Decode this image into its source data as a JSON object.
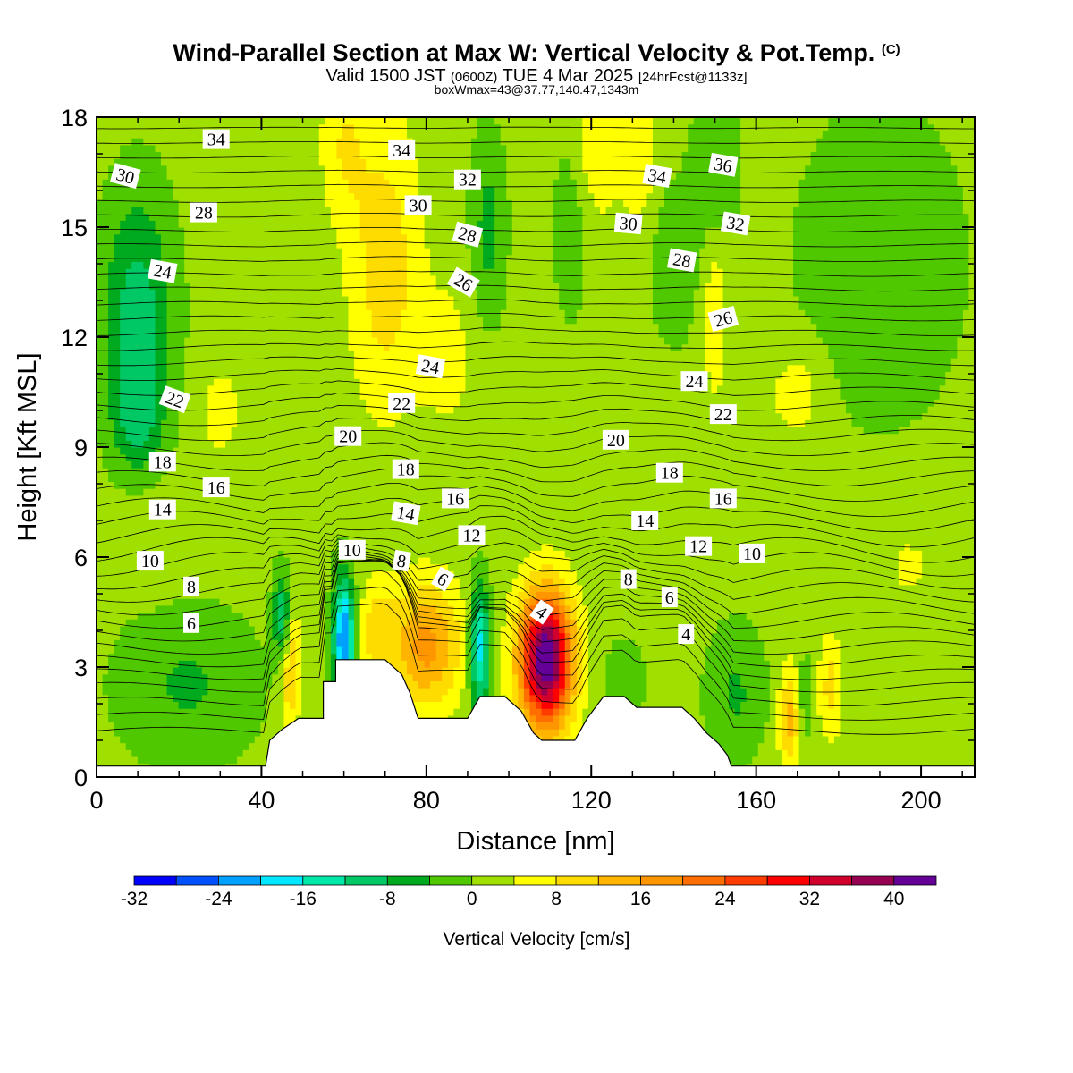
{
  "header": {
    "title": "Wind-Parallel Section at Max W: Vertical Velocity & Pot.Temp.",
    "copyright": "(C)",
    "valid_prefix": "Valid 1500 JST",
    "valid_utc": "(0600Z)",
    "valid_date": "TUE 4 Mar 2025",
    "forecast": "[24hrFcst@1133z]",
    "box_info": "boxWmax=43@37.77,140.47,1343m"
  },
  "chart_data": {
    "type": "heatmap",
    "xlabel": "Distance [nm]",
    "ylabel": "Height [Kft MSL]",
    "xlim": [
      0,
      213
    ],
    "ylim": [
      0,
      18
    ],
    "x_ticks": [
      "0",
      "40",
      "80",
      "120",
      "160",
      "200"
    ],
    "y_ticks": [
      "0",
      "3",
      "6",
      "9",
      "12",
      "15",
      "18"
    ],
    "colorbar": {
      "label": "Vertical Velocity [cm/s]",
      "tick_labels": [
        "-32",
        "-24",
        "-16",
        "-8",
        "0",
        "8",
        "16",
        "24",
        "32",
        "40"
      ],
      "levels": [
        -32,
        -28,
        -24,
        -20,
        -16,
        -12,
        -8,
        -4,
        0,
        4,
        8,
        12,
        16,
        20,
        24,
        28,
        32,
        36,
        40,
        44
      ],
      "colors": [
        "#0000ff",
        "#0050ff",
        "#00a0ff",
        "#00e8ff",
        "#00e8a8",
        "#00c864",
        "#00aa1e",
        "#50c800",
        "#a0e000",
        "#ffff00",
        "#ffdc00",
        "#ffb400",
        "#ff9600",
        "#ff6e00",
        "#ff3c00",
        "#ff0000",
        "#d2002d",
        "#960050",
        "#640096"
      ]
    },
    "terrain_kft": [
      [
        0,
        0.3
      ],
      [
        41,
        0.3
      ],
      [
        42,
        1.0
      ],
      [
        45,
        1.3
      ],
      [
        49,
        1.6
      ],
      [
        55,
        1.6
      ],
      [
        55,
        2.6
      ],
      [
        58,
        2.6
      ],
      [
        58,
        3.2
      ],
      [
        70,
        3.2
      ],
      [
        74,
        2.8
      ],
      [
        76,
        2.3
      ],
      [
        78,
        1.6
      ],
      [
        90,
        1.6
      ],
      [
        93,
        2.2
      ],
      [
        99,
        2.2
      ],
      [
        103,
        1.8
      ],
      [
        106,
        1.2
      ],
      [
        108,
        1.0
      ],
      [
        116,
        1.0
      ],
      [
        119,
        1.6
      ],
      [
        123,
        2.2
      ],
      [
        128,
        2.2
      ],
      [
        131,
        1.9
      ],
      [
        142,
        1.9
      ],
      [
        145,
        1.6
      ],
      [
        148,
        1.2
      ],
      [
        151,
        0.9
      ],
      [
        153,
        0.6
      ],
      [
        154,
        0.3
      ],
      [
        213,
        0.3
      ]
    ],
    "theta_contours": [
      {
        "label": "4",
        "x": 108,
        "y": 4.5,
        "angle": 35
      },
      {
        "label": "4",
        "x": 143,
        "y": 3.9,
        "angle": 0
      },
      {
        "label": "6",
        "x": 23,
        "y": 4.2,
        "angle": 0
      },
      {
        "label": "6",
        "x": 84,
        "y": 5.4,
        "angle": 30
      },
      {
        "label": "6",
        "x": 139,
        "y": 4.9,
        "angle": 0
      },
      {
        "label": "8",
        "x": 23,
        "y": 5.2,
        "angle": 0
      },
      {
        "label": "8",
        "x": 74,
        "y": 5.9,
        "angle": 10
      },
      {
        "label": "8",
        "x": 129,
        "y": 5.4,
        "angle": 0
      },
      {
        "label": "10",
        "x": 13,
        "y": 5.9,
        "angle": 0
      },
      {
        "label": "10",
        "x": 62,
        "y": 6.2,
        "angle": 0
      },
      {
        "label": "10",
        "x": 159,
        "y": 6.1,
        "angle": 0
      },
      {
        "label": "12",
        "x": 91,
        "y": 6.6,
        "angle": 0
      },
      {
        "label": "12",
        "x": 146,
        "y": 6.3,
        "angle": 0
      },
      {
        "label": "14",
        "x": 16,
        "y": 7.3,
        "angle": 0
      },
      {
        "label": "14",
        "x": 75,
        "y": 7.2,
        "angle": 10
      },
      {
        "label": "14",
        "x": 133,
        "y": 7.0,
        "angle": 0
      },
      {
        "label": "16",
        "x": 29,
        "y": 7.9,
        "angle": 0
      },
      {
        "label": "16",
        "x": 87,
        "y": 7.6,
        "angle": 0
      },
      {
        "label": "16",
        "x": 152,
        "y": 7.6,
        "angle": 0
      },
      {
        "label": "18",
        "x": 16,
        "y": 8.6,
        "angle": 0
      },
      {
        "label": "18",
        "x": 75,
        "y": 8.4,
        "angle": 0
      },
      {
        "label": "18",
        "x": 139,
        "y": 8.3,
        "angle": 0
      },
      {
        "label": "20",
        "x": 61,
        "y": 9.3,
        "angle": 0
      },
      {
        "label": "20",
        "x": 126,
        "y": 9.2,
        "angle": 0
      },
      {
        "label": "22",
        "x": 19,
        "y": 10.3,
        "angle": 20
      },
      {
        "label": "22",
        "x": 74,
        "y": 10.2,
        "angle": 0
      },
      {
        "label": "22",
        "x": 152,
        "y": 9.9,
        "angle": 0
      },
      {
        "label": "24",
        "x": 16,
        "y": 13.8,
        "angle": 10
      },
      {
        "label": "24",
        "x": 81,
        "y": 11.2,
        "angle": 10
      },
      {
        "label": "24",
        "x": 145,
        "y": 10.8,
        "angle": 0
      },
      {
        "label": "26",
        "x": 89,
        "y": 13.5,
        "angle": 30
      },
      {
        "label": "26",
        "x": 152,
        "y": 12.5,
        "angle": -15
      },
      {
        "label": "28",
        "x": 26,
        "y": 15.4,
        "angle": 0
      },
      {
        "label": "28",
        "x": 90,
        "y": 14.8,
        "angle": 15
      },
      {
        "label": "28",
        "x": 142,
        "y": 14.1,
        "angle": 10
      },
      {
        "label": "30",
        "x": 7,
        "y": 16.4,
        "angle": 15
      },
      {
        "label": "30",
        "x": 78,
        "y": 15.6,
        "angle": 0
      },
      {
        "label": "30",
        "x": 129,
        "y": 15.1,
        "angle": 5
      },
      {
        "label": "32",
        "x": 90,
        "y": 16.3,
        "angle": 0
      },
      {
        "label": "32",
        "x": 155,
        "y": 15.1,
        "angle": 10
      },
      {
        "label": "34",
        "x": 29,
        "y": 17.4,
        "angle": 0
      },
      {
        "label": "34",
        "x": 74,
        "y": 17.1,
        "angle": 0
      },
      {
        "label": "34",
        "x": 136,
        "y": 16.4,
        "angle": 10
      },
      {
        "label": "36",
        "x": 152,
        "y": 16.7,
        "angle": 10
      }
    ]
  }
}
